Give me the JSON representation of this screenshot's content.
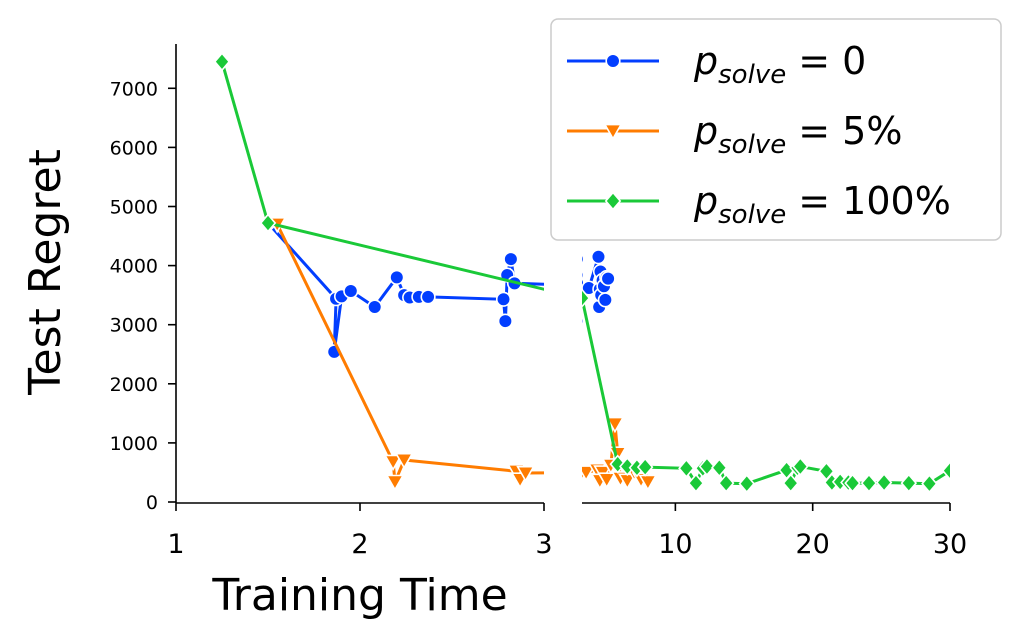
{
  "chart_data": {
    "type": "line",
    "xlabel": "Training Time",
    "ylabel": "Test Regret",
    "ylim": [
      0,
      7800
    ],
    "yticks": [
      0,
      1000,
      2000,
      3000,
      4000,
      5000,
      6000,
      7000
    ],
    "ytick_labels": [
      "0",
      "1000",
      "2000",
      "3000",
      "4000",
      "5000",
      "6000",
      "7000"
    ],
    "panels": [
      {
        "name": "left",
        "xlim": [
          1,
          3
        ],
        "xticks": [
          1,
          2,
          3
        ],
        "xtick_labels": [
          "1",
          "2",
          "3"
        ]
      },
      {
        "name": "right",
        "xlim": [
          3.2,
          30
        ],
        "xticks": [
          10,
          20,
          30
        ],
        "xtick_labels": [
          "10",
          "20",
          "30"
        ]
      }
    ],
    "legend_position": "top-right",
    "series": [
      {
        "name": "p_solve = 0",
        "legend": {
          "p": "p",
          "sub": "solve",
          "rest": " = 0"
        },
        "color": "#023eff",
        "marker": "circle",
        "x": [
          1.5,
          1.87,
          1.86,
          1.9,
          1.95,
          2.08,
          2.2,
          2.24,
          2.27,
          2.32,
          2.37,
          2.78,
          2.79,
          2.8,
          2.82,
          2.84,
          3.7,
          4.4,
          4.45,
          4.5,
          4.55,
          4.6,
          4.7,
          4.8,
          4.9,
          5.0,
          5.1
        ],
        "y": [
          4720,
          3440,
          2540,
          3480,
          3570,
          3300,
          3800,
          3500,
          3460,
          3470,
          3470,
          3430,
          3060,
          3840,
          4110,
          3700,
          3620,
          4150,
          3300,
          3600,
          3900,
          3500,
          3750,
          3650,
          3420,
          3800,
          3780
        ]
      },
      {
        "name": "p_solve = 5%",
        "legend": {
          "p": "p",
          "sub": "solve",
          "rest": " = 5%"
        },
        "color": "#ff7c00",
        "marker": "triangle-down",
        "x": [
          1.55,
          2.18,
          2.19,
          2.24,
          2.85,
          2.87,
          2.9,
          3.5,
          4.3,
          4.5,
          4.7,
          5.0,
          5.3,
          5.6,
          5.8,
          6.0,
          6.5,
          7.0,
          7.5,
          8.0
        ],
        "y": [
          4700,
          680,
          340,
          710,
          520,
          380,
          490,
          500,
          540,
          360,
          500,
          380,
          620,
          1320,
          820,
          400,
          360,
          500,
          380,
          340
        ]
      },
      {
        "name": "p_solve = 100%",
        "legend": {
          "p": "p",
          "sub": "solve",
          "rest": " = 100%"
        },
        "color": "#1ac938",
        "marker": "diamond",
        "x": [
          1.25,
          1.5,
          3.2,
          5.8,
          6.5,
          7.2,
          7.8,
          10.8,
          11.5,
          12.0,
          12.3,
          13.2,
          13.7,
          15.2,
          18.1,
          18.4,
          18.9,
          19.1,
          21.0,
          21.4,
          22.0,
          22.6,
          22.9,
          24.1,
          25.2,
          27.0,
          28.5,
          30.0
        ],
        "y": [
          7450,
          4720,
          3450,
          640,
          600,
          580,
          590,
          570,
          320,
          570,
          600,
          580,
          320,
          310,
          540,
          320,
          580,
          600,
          520,
          330,
          340,
          330,
          320,
          320,
          330,
          320,
          310,
          530
        ]
      }
    ]
  }
}
